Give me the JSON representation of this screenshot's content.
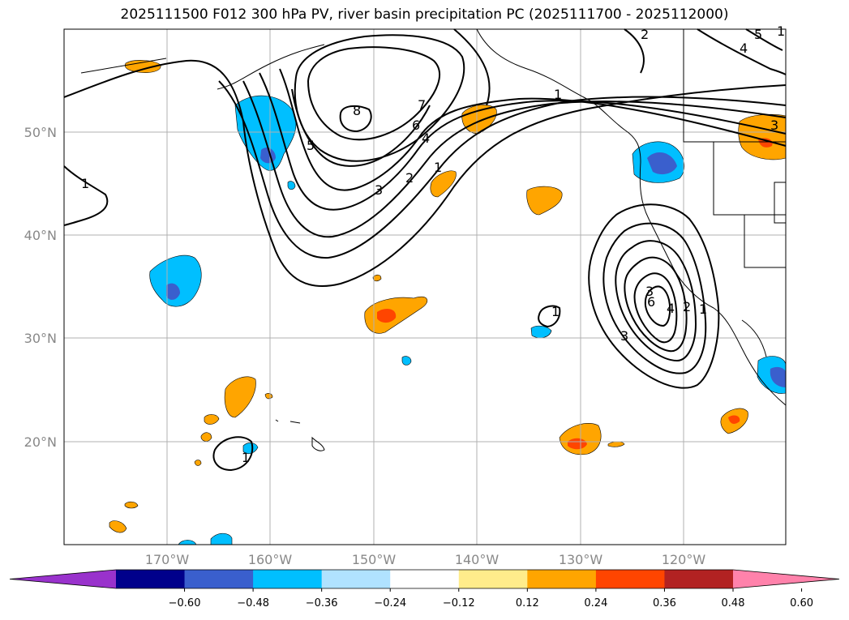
{
  "title": "2025111500 F012 300 hPa PV, river basin precipitation PC (2025111700 - 2025112000)",
  "lat_labels": [
    "50°N",
    "40°N",
    "30°N",
    "20°N"
  ],
  "lon_labels": [
    "170°W",
    "160°W",
    "150°W",
    "140°W",
    "130°W",
    "120°W"
  ],
  "colorbar": {
    "ticks": [
      "−0.60",
      "−0.48",
      "−0.36",
      "−0.24",
      "−0.12",
      "0.12",
      "0.24",
      "0.36",
      "0.48",
      "0.60"
    ],
    "colors": [
      "#9932cc",
      "#00008b",
      "#3a5fcd",
      "#00bfff",
      "#b0e2ff",
      "#ffffff",
      "#ffec8b",
      "#ffa500",
      "#ff4500",
      "#b22222",
      "#ff82ab"
    ]
  },
  "pv_contour_labels": [
    "8",
    "7",
    "6",
    "5",
    "4",
    "3",
    "2",
    "1",
    "1",
    "2",
    "3",
    "4",
    "5",
    "6",
    "1",
    "1",
    "3",
    "4",
    "3",
    "2",
    "1",
    "1",
    "1"
  ],
  "colors": {
    "pos_light": "#ffa500",
    "pos_mid": "#ff4500",
    "neg_light": "#00bfff",
    "neg_mid": "#3a5fcd"
  }
}
